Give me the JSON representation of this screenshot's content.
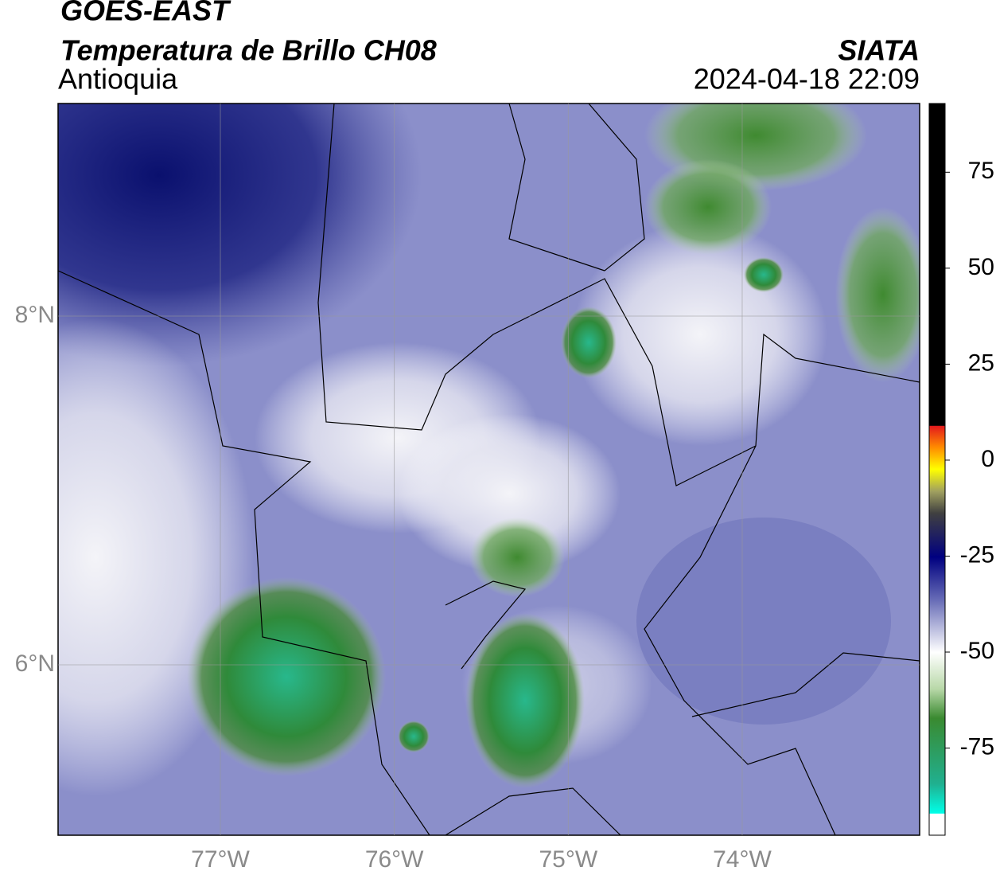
{
  "header": {
    "title": "GOES-EAST",
    "subtitle": "Temperatura de Brillo CH08",
    "region": "Antioquia",
    "source": "SIATA",
    "timestamp": "2024-04-18 22:09"
  },
  "map": {
    "xlim": [
      -77.933,
      -72.98
    ],
    "ylim": [
      5.023,
      9.219
    ],
    "xticks": [
      {
        "value": -77,
        "label": "77°W"
      },
      {
        "value": -76,
        "label": "76°W"
      },
      {
        "value": -75,
        "label": "75°W"
      },
      {
        "value": -74,
        "label": "74°W"
      }
    ],
    "yticks": [
      {
        "value": 8,
        "label": "8°N"
      },
      {
        "value": 6,
        "label": "6°N"
      }
    ],
    "grid": true
  },
  "colorbar": {
    "lim": [
      -97.7,
      92.9
    ],
    "ticks": [
      75,
      50,
      25,
      0,
      -25,
      -50,
      -75
    ]
  }
}
